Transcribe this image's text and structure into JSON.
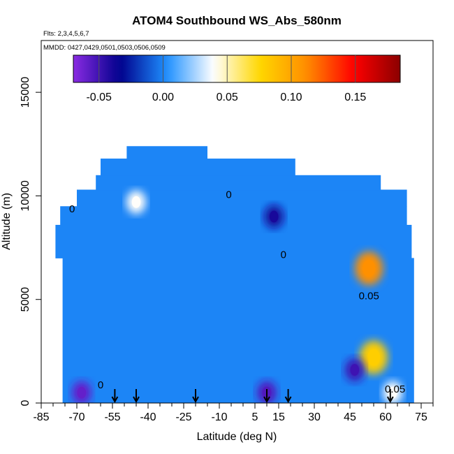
{
  "chart_data": {
    "type": "heatmap",
    "title": "ATOM4 Southbound WS_Abs_580nm",
    "annotations": [
      "Flts: 2,3,4,5,6,7",
      "MMDD: 0427,0429,0501,0503,0506,0509"
    ],
    "xlabel": "Latitude (deg N)",
    "ylabel": "Altitude (m)",
    "xlim": [
      -85,
      80
    ],
    "ylim": [
      0,
      17500
    ],
    "x_ticks": [
      -85,
      -70,
      -55,
      -40,
      -25,
      -10,
      5,
      15,
      30,
      45,
      60,
      75
    ],
    "x_minor_step": 5,
    "y_ticks": [
      0,
      5000,
      10000,
      15000
    ],
    "colorbar": {
      "range": [
        -0.07,
        0.185
      ],
      "ticks": [
        -0.05,
        0.0,
        0.05,
        0.1,
        0.15
      ],
      "tick_labels": [
        "-0.05",
        "0.00",
        "0.05",
        "0.10",
        "0.15"
      ],
      "colors": [
        "#8a2be2",
        "#00008b",
        "#1e90ff",
        "#ffffff",
        "#ffd700",
        "#ff8c00",
        "#ff0000",
        "#8b0000"
      ]
    },
    "background_value": 0.0,
    "field_extent": {
      "bands": [
        {
          "alt": [
            0,
            7000
          ],
          "lat": [
            -76,
            72
          ]
        },
        {
          "alt": [
            7000,
            8600
          ],
          "lat": [
            -79,
            71
          ]
        },
        {
          "alt": [
            8600,
            9500
          ],
          "lat": [
            -77,
            69
          ]
        },
        {
          "alt": [
            9500,
            10300
          ],
          "lat": [
            -70,
            69
          ]
        },
        {
          "alt": [
            10300,
            11000
          ],
          "lat": [
            -62,
            58
          ]
        },
        {
          "alt": [
            11000,
            11800
          ],
          "lat": [
            -60,
            22
          ]
        },
        {
          "alt": [
            11800,
            12400
          ],
          "lat": [
            -49,
            -15
          ]
        }
      ]
    },
    "features": [
      {
        "lat": 53,
        "alt": 6500,
        "value": 0.11
      },
      {
        "lat": 55,
        "alt": 2200,
        "value": 0.08
      },
      {
        "lat": 47,
        "alt": 1600,
        "value": -0.05
      },
      {
        "lat": 10,
        "alt": 500,
        "value": -0.055
      },
      {
        "lat": 13,
        "alt": 9000,
        "value": -0.04
      },
      {
        "lat": -68,
        "alt": 500,
        "value": -0.06
      },
      {
        "lat": -45,
        "alt": 9700,
        "value": 0.04
      },
      {
        "lat": 63,
        "alt": 500,
        "value": 0.04
      }
    ],
    "contour_labels": [
      {
        "text": "0",
        "lat": -72,
        "alt": 9200
      },
      {
        "text": "0",
        "lat": -6,
        "alt": 9900
      },
      {
        "text": "0",
        "lat": 17,
        "alt": 7000
      },
      {
        "text": "0.05",
        "lat": 53,
        "alt": 5000
      },
      {
        "text": "0",
        "lat": -60,
        "alt": 700
      },
      {
        "text": "0.05",
        "lat": 64,
        "alt": 500
      }
    ],
    "flight_markers_lat": [
      -54,
      -45,
      -20,
      10,
      19,
      62
    ]
  }
}
